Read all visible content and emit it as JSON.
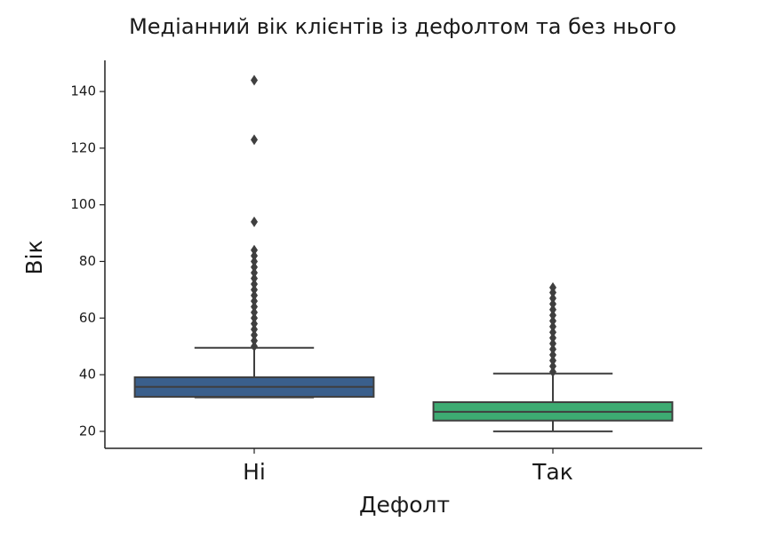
{
  "chart_data": {
    "type": "box",
    "title": "Медіанний вік клієнтів із дефолтом та без нього",
    "x_label": "Дефолт",
    "y_label": "Вік",
    "categories": [
      "Ні",
      "Так"
    ],
    "colors": [
      "#3a5f8c",
      "#3dab72"
    ],
    "boxes": [
      {
        "whislo": 32,
        "q1": 32.2,
        "med": 35.7,
        "q3": 39.1,
        "whishi": 49.5,
        "fliers": [
          50,
          52,
          54,
          56,
          58,
          60,
          62,
          64,
          66,
          68,
          70,
          72,
          74,
          76,
          78,
          80,
          82,
          84,
          94,
          123,
          144
        ]
      },
      {
        "whislo": 20,
        "q1": 23.8,
        "med": 26.9,
        "q3": 30.3,
        "whishi": 40.4,
        "fliers": [
          41,
          43,
          45,
          47,
          49,
          51,
          53,
          55,
          57,
          59,
          61,
          63,
          65,
          67,
          69,
          70.8
        ]
      }
    ],
    "ylim": [
      14,
      151
    ],
    "yticks": [
      20,
      40,
      60,
      80,
      100,
      120,
      140
    ],
    "grid": false
  }
}
